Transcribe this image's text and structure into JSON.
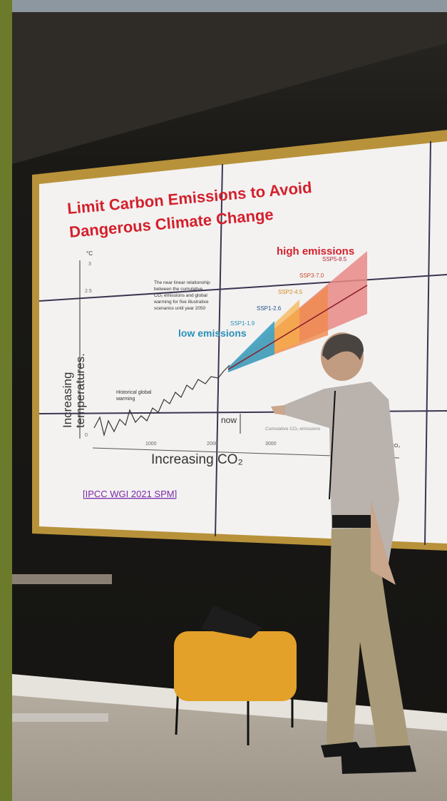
{
  "slide": {
    "title_lines": [
      "Limit Carbon Emissions to Avoid",
      "Dangerous Climate Change"
    ],
    "unit": "°C",
    "y_ticks": [
      "3",
      "2.5",
      "0"
    ],
    "x_ticks": [
      "1000",
      "2000",
      "3000"
    ],
    "y_label_lines": [
      "Increasing",
      "temperatures."
    ],
    "x_label": "Increasing CO₂",
    "note_lines": [
      "The near linear relationship",
      "between the cumulative",
      "CO₂ emissions and global",
      "warming for five illustrative",
      "scenarios until year 2050"
    ],
    "historical_lines": [
      "Historical global",
      "warming"
    ],
    "now": "now",
    "x_caption": "Cumulative CO₂ emissions",
    "x_end": "CO₂",
    "high": "high emissions",
    "low": "low emissions",
    "scenarios": [
      "SSP5-8.5",
      "SSP3-7.0",
      "SSP2-4.5",
      "SSP1-2.6",
      "SSP1-1.9"
    ],
    "citation": "[IPCC WGI 2021 SPM]"
  }
}
